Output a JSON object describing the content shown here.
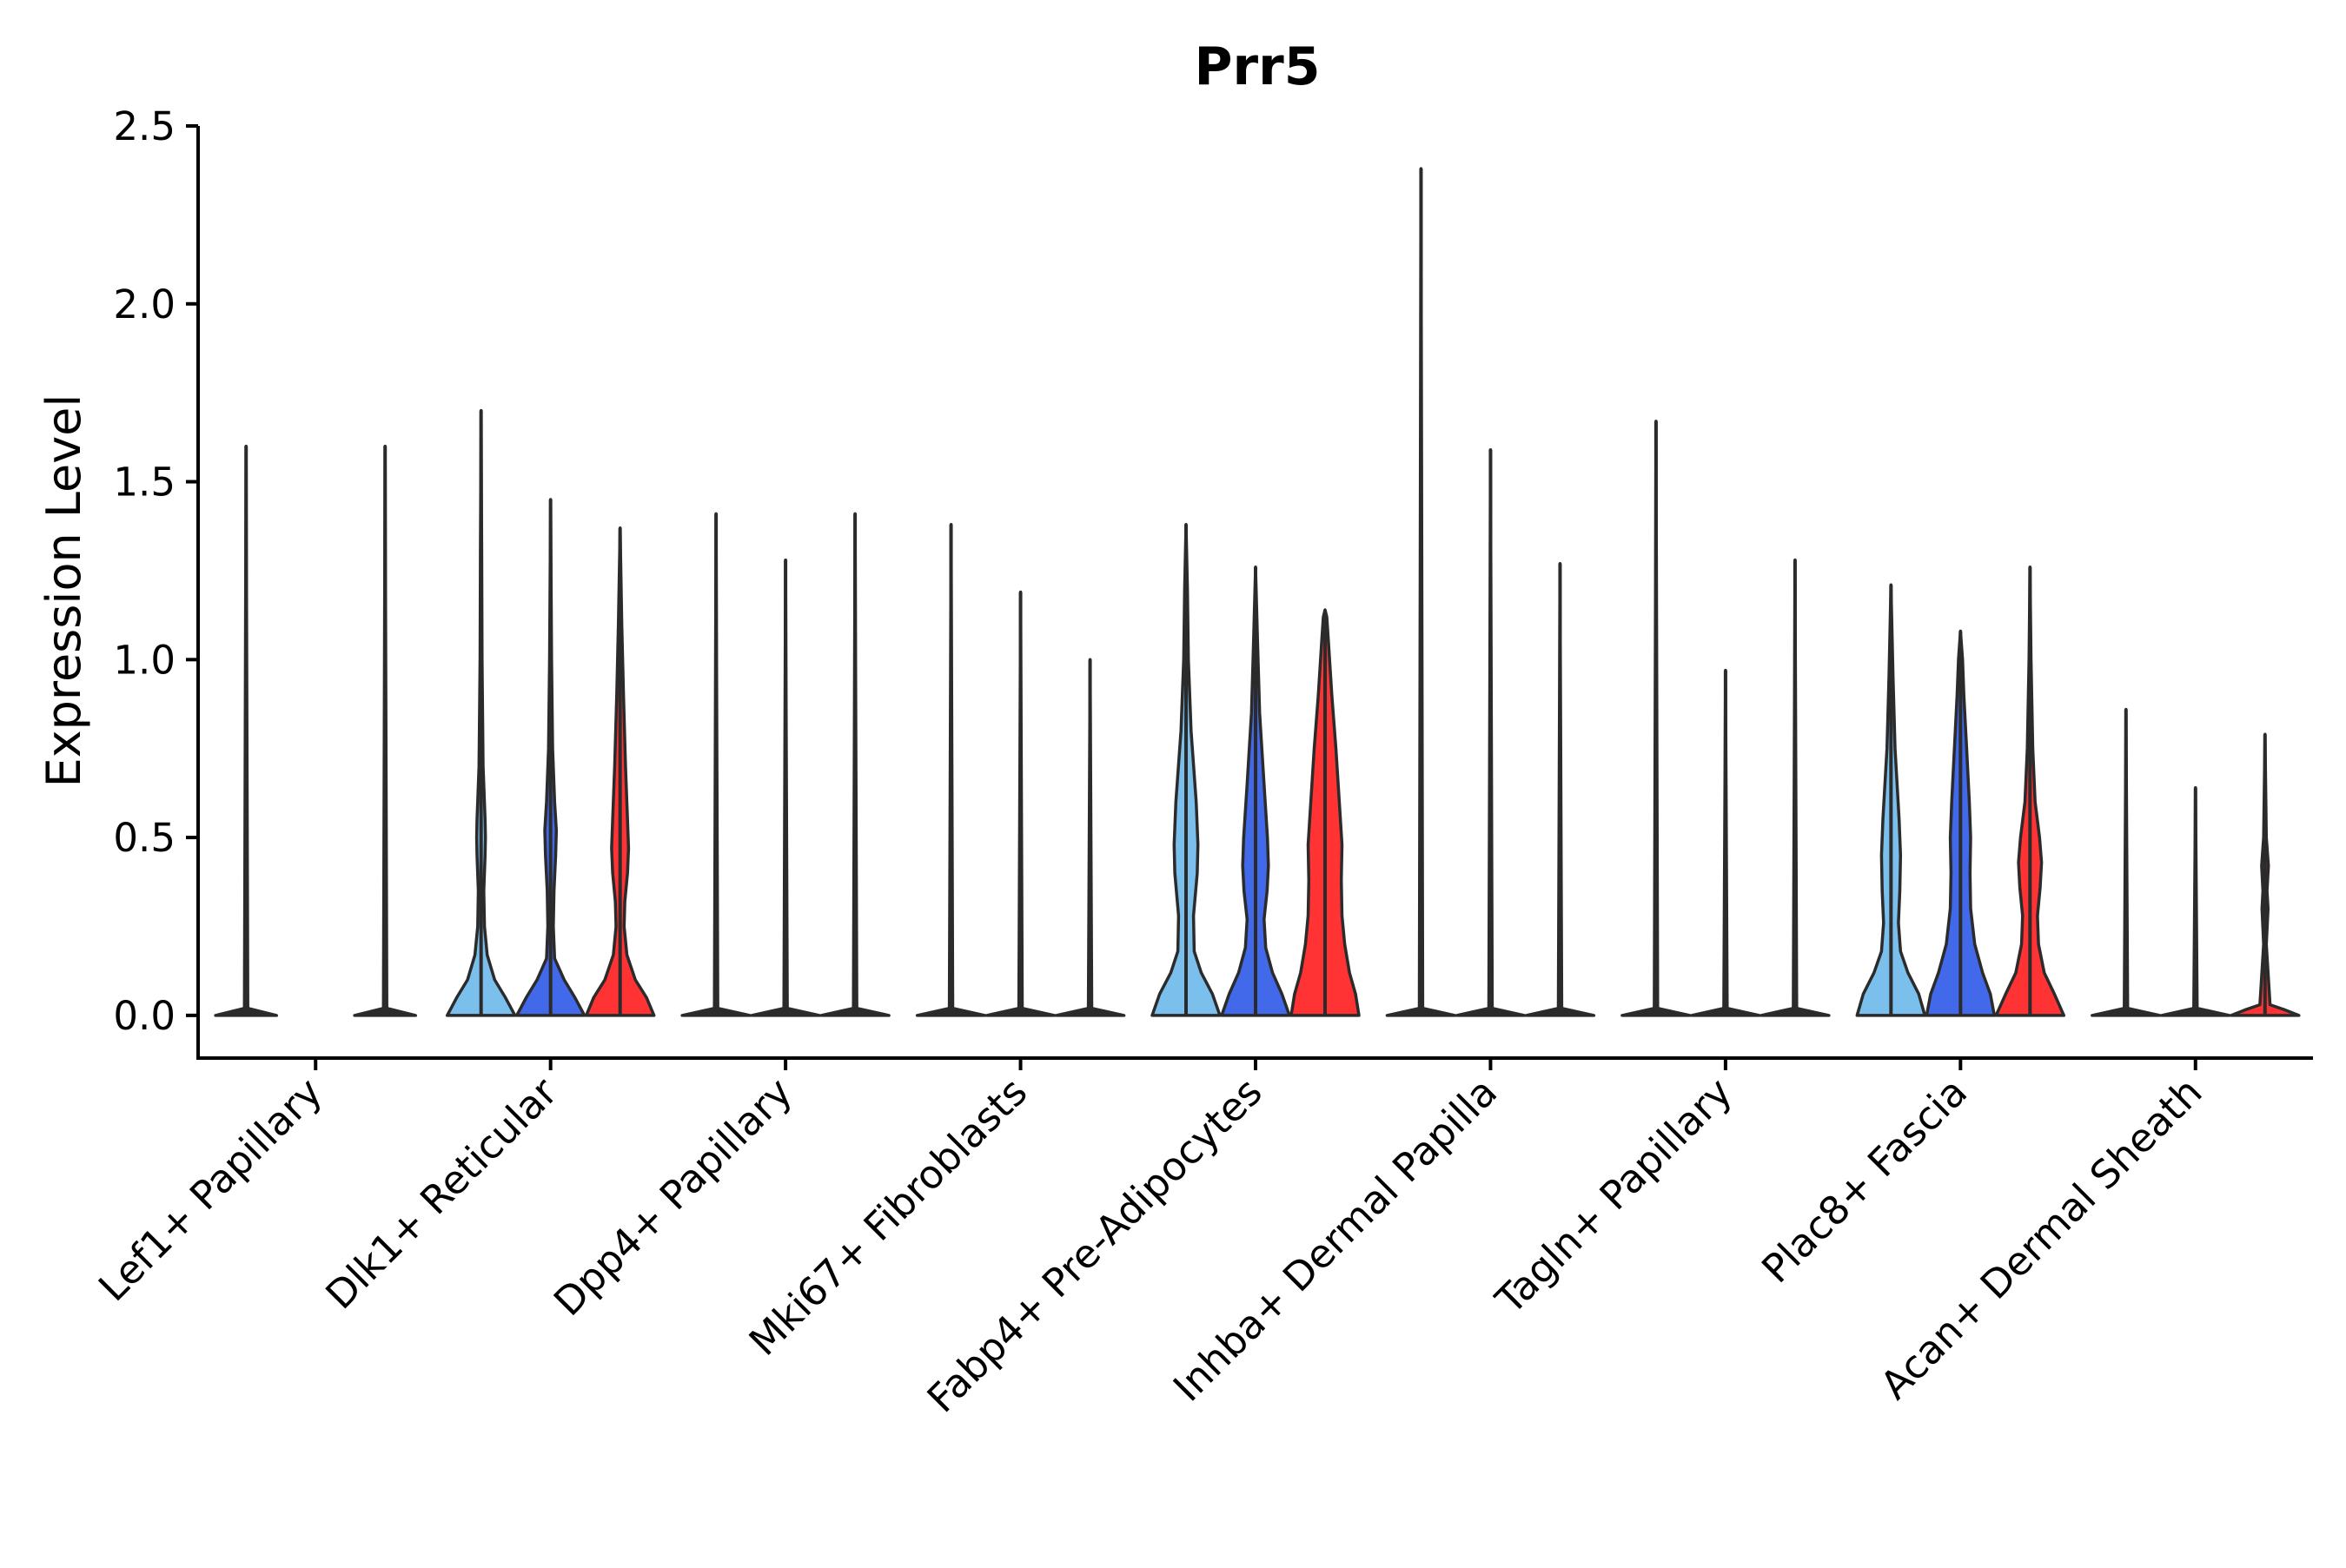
{
  "chart_data": {
    "type": "violin",
    "title": "Prr5",
    "xlabel": "",
    "ylabel": "Expression Level",
    "ylim": [
      -0.12,
      2.5
    ],
    "yticks": [
      0.0,
      0.5,
      1.0,
      1.5,
      2.0,
      2.5
    ],
    "ytick_labels": [
      "0.0",
      "0.5",
      "1.0",
      "1.5",
      "2.0",
      "2.5"
    ],
    "grid": false,
    "legend": "none",
    "series_colors": [
      "#7bbfed",
      "#4169e9",
      "#ff3333"
    ],
    "categories": [
      "Lef1+ Papillary",
      "Dlk1+ Reticular",
      "Dpp4+ Papillary",
      "Mki67+ Fibroblasts",
      "Fabp4+ Pre-Adipocytes",
      "Inhba+ Dermal Papilla",
      "Tagln+ Papillary",
      "Plac8+ Fascia",
      "Acan+ Dermal Sheath"
    ],
    "groups": [
      {
        "category": "Lef1+ Papillary",
        "violins": [
          {
            "series": 0,
            "max": 1.6,
            "profile": [
              [
                0,
                0.9
              ],
              [
                0.02,
                0.05
              ],
              [
                1.6,
                0.0
              ]
            ]
          },
          {
            "series": 2,
            "max": 1.6,
            "profile": [
              [
                0,
                0.9
              ],
              [
                0.02,
                0.05
              ],
              [
                1.6,
                0.0
              ]
            ]
          }
        ]
      },
      {
        "category": "Dlk1+ Reticular",
        "violins": [
          {
            "series": 0,
            "max": 1.7,
            "profile": [
              [
                0,
                1.0
              ],
              [
                0.05,
                0.72
              ],
              [
                0.1,
                0.4
              ],
              [
                0.17,
                0.18
              ],
              [
                0.25,
                0.1
              ],
              [
                0.35,
                0.08
              ],
              [
                0.45,
                0.12
              ],
              [
                0.5,
                0.13
              ],
              [
                0.55,
                0.12
              ],
              [
                0.7,
                0.06
              ],
              [
                1.0,
                0.03
              ],
              [
                1.3,
                0.02
              ],
              [
                1.7,
                0.0
              ]
            ]
          },
          {
            "series": 1,
            "max": 1.45,
            "profile": [
              [
                0,
                1.0
              ],
              [
                0.05,
                0.72
              ],
              [
                0.1,
                0.4
              ],
              [
                0.16,
                0.12
              ],
              [
                0.25,
                0.08
              ],
              [
                0.35,
                0.1
              ],
              [
                0.45,
                0.15
              ],
              [
                0.52,
                0.17
              ],
              [
                0.6,
                0.12
              ],
              [
                0.75,
                0.06
              ],
              [
                1.0,
                0.03
              ],
              [
                1.45,
                0.0
              ]
            ]
          },
          {
            "series": 2,
            "max": 1.37,
            "profile": [
              [
                0,
                1.0
              ],
              [
                0.05,
                0.78
              ],
              [
                0.1,
                0.45
              ],
              [
                0.17,
                0.2
              ],
              [
                0.25,
                0.12
              ],
              [
                0.32,
                0.14
              ],
              [
                0.4,
                0.22
              ],
              [
                0.47,
                0.25
              ],
              [
                0.55,
                0.22
              ],
              [
                0.7,
                0.16
              ],
              [
                0.9,
                0.1
              ],
              [
                1.1,
                0.05
              ],
              [
                1.37,
                0.0
              ]
            ]
          }
        ]
      },
      {
        "category": "Dpp4+ Papillary",
        "violins": [
          {
            "series": 0,
            "max": 1.41,
            "profile": [
              [
                0,
                1.0
              ],
              [
                0.02,
                0.05
              ],
              [
                1.41,
                0.0
              ]
            ]
          },
          {
            "series": 1,
            "max": 1.28,
            "profile": [
              [
                0,
                1.0
              ],
              [
                0.02,
                0.05
              ],
              [
                1.28,
                0.0
              ]
            ]
          },
          {
            "series": 2,
            "max": 1.41,
            "profile": [
              [
                0,
                1.0
              ],
              [
                0.02,
                0.05
              ],
              [
                1.41,
                0.0
              ]
            ]
          }
        ]
      },
      {
        "category": "Mki67+ Fibroblasts",
        "violins": [
          {
            "series": 0,
            "max": 1.38,
            "profile": [
              [
                0,
                1.0
              ],
              [
                0.02,
                0.05
              ],
              [
                1.38,
                0.0
              ]
            ]
          },
          {
            "series": 1,
            "max": 1.19,
            "profile": [
              [
                0,
                1.0
              ],
              [
                0.02,
                0.05
              ],
              [
                1.19,
                0.0
              ]
            ]
          },
          {
            "series": 2,
            "max": 1.0,
            "profile": [
              [
                0,
                1.0
              ],
              [
                0.02,
                0.05
              ],
              [
                1.0,
                0.0
              ]
            ]
          }
        ]
      },
      {
        "category": "Fabp4+ Pre-Adipocytes",
        "violins": [
          {
            "series": 0,
            "max": 1.38,
            "profile": [
              [
                0,
                1.0
              ],
              [
                0.06,
                0.78
              ],
              [
                0.12,
                0.45
              ],
              [
                0.18,
                0.24
              ],
              [
                0.28,
                0.22
              ],
              [
                0.4,
                0.33
              ],
              [
                0.48,
                0.35
              ],
              [
                0.6,
                0.3
              ],
              [
                0.8,
                0.15
              ],
              [
                1.0,
                0.07
              ],
              [
                1.2,
                0.04
              ],
              [
                1.38,
                0.0
              ]
            ]
          },
          {
            "series": 1,
            "max": 1.26,
            "profile": [
              [
                0,
                1.0
              ],
              [
                0.06,
                0.78
              ],
              [
                0.12,
                0.5
              ],
              [
                0.19,
                0.3
              ],
              [
                0.27,
                0.25
              ],
              [
                0.35,
                0.34
              ],
              [
                0.42,
                0.38
              ],
              [
                0.5,
                0.35
              ],
              [
                0.65,
                0.25
              ],
              [
                0.85,
                0.12
              ],
              [
                1.05,
                0.06
              ],
              [
                1.26,
                0.0
              ]
            ]
          },
          {
            "series": 2,
            "max": 1.14,
            "profile": [
              [
                0,
                1.0
              ],
              [
                0.06,
                0.9
              ],
              [
                0.12,
                0.72
              ],
              [
                0.2,
                0.58
              ],
              [
                0.28,
                0.5
              ],
              [
                0.38,
                0.48
              ],
              [
                0.48,
                0.5
              ],
              [
                0.6,
                0.42
              ],
              [
                0.75,
                0.32
              ],
              [
                0.9,
                0.2
              ],
              [
                1.05,
                0.1
              ],
              [
                1.12,
                0.05
              ],
              [
                1.14,
                0.0
              ]
            ]
          }
        ]
      },
      {
        "category": "Inhba+ Dermal Papilla",
        "violins": [
          {
            "series": 0,
            "max": 2.38,
            "profile": [
              [
                0,
                1.0
              ],
              [
                0.02,
                0.05
              ],
              [
                2.38,
                0.0
              ]
            ]
          },
          {
            "series": 1,
            "max": 1.59,
            "profile": [
              [
                0,
                1.0
              ],
              [
                0.02,
                0.05
              ],
              [
                1.59,
                0.0
              ]
            ]
          },
          {
            "series": 2,
            "max": 1.27,
            "profile": [
              [
                0,
                1.0
              ],
              [
                0.02,
                0.05
              ],
              [
                1.27,
                0.0
              ]
            ]
          }
        ]
      },
      {
        "category": "Tagln+ Papillary",
        "violins": [
          {
            "series": 0,
            "max": 1.67,
            "profile": [
              [
                0,
                1.0
              ],
              [
                0.02,
                0.05
              ],
              [
                1.67,
                0.0
              ]
            ]
          },
          {
            "series": 1,
            "max": 0.97,
            "profile": [
              [
                0,
                1.0
              ],
              [
                0.02,
                0.05
              ],
              [
                0.97,
                0.0
              ]
            ]
          },
          {
            "series": 2,
            "max": 1.28,
            "profile": [
              [
                0,
                1.0
              ],
              [
                0.02,
                0.05
              ],
              [
                1.28,
                0.0
              ]
            ]
          }
        ]
      },
      {
        "category": "Plac8+ Fascia",
        "violins": [
          {
            "series": 0,
            "max": 1.21,
            "profile": [
              [
                0,
                1.0
              ],
              [
                0.06,
                0.82
              ],
              [
                0.12,
                0.5
              ],
              [
                0.18,
                0.28
              ],
              [
                0.26,
                0.22
              ],
              [
                0.35,
                0.26
              ],
              [
                0.45,
                0.28
              ],
              [
                0.55,
                0.24
              ],
              [
                0.75,
                0.12
              ],
              [
                0.95,
                0.06
              ],
              [
                1.21,
                0.0
              ]
            ]
          },
          {
            "series": 1,
            "max": 1.08,
            "profile": [
              [
                0,
                1.0
              ],
              [
                0.06,
                0.88
              ],
              [
                0.12,
                0.65
              ],
              [
                0.2,
                0.42
              ],
              [
                0.3,
                0.3
              ],
              [
                0.4,
                0.28
              ],
              [
                0.5,
                0.3
              ],
              [
                0.6,
                0.26
              ],
              [
                0.75,
                0.18
              ],
              [
                0.9,
                0.1
              ],
              [
                1.0,
                0.06
              ],
              [
                1.08,
                0.0
              ]
            ]
          },
          {
            "series": 2,
            "max": 1.26,
            "profile": [
              [
                0,
                1.0
              ],
              [
                0.06,
                0.72
              ],
              [
                0.12,
                0.42
              ],
              [
                0.2,
                0.25
              ],
              [
                0.28,
                0.22
              ],
              [
                0.36,
                0.3
              ],
              [
                0.43,
                0.34
              ],
              [
                0.5,
                0.28
              ],
              [
                0.6,
                0.15
              ],
              [
                0.75,
                0.08
              ],
              [
                1.0,
                0.03
              ],
              [
                1.26,
                0.0
              ]
            ]
          }
        ]
      },
      {
        "category": "Acan+ Dermal Sheath",
        "violins": [
          {
            "series": 0,
            "max": 0.86,
            "profile": [
              [
                0,
                1.0
              ],
              [
                0.02,
                0.05
              ],
              [
                0.86,
                0.0
              ]
            ]
          },
          {
            "series": 1,
            "max": 0.64,
            "profile": [
              [
                0,
                1.0
              ],
              [
                0.02,
                0.05
              ],
              [
                0.64,
                0.0
              ]
            ]
          },
          {
            "series": 2,
            "max": 0.79,
            "profile": [
              [
                0,
                1.0
              ],
              [
                0.015,
                0.6
              ],
              [
                0.03,
                0.15
              ],
              [
                0.2,
                0.04
              ],
              [
                0.3,
                0.09
              ],
              [
                0.35,
                0.06
              ],
              [
                0.42,
                0.1
              ],
              [
                0.5,
                0.04
              ],
              [
                0.79,
                0.0
              ]
            ]
          }
        ]
      }
    ]
  }
}
